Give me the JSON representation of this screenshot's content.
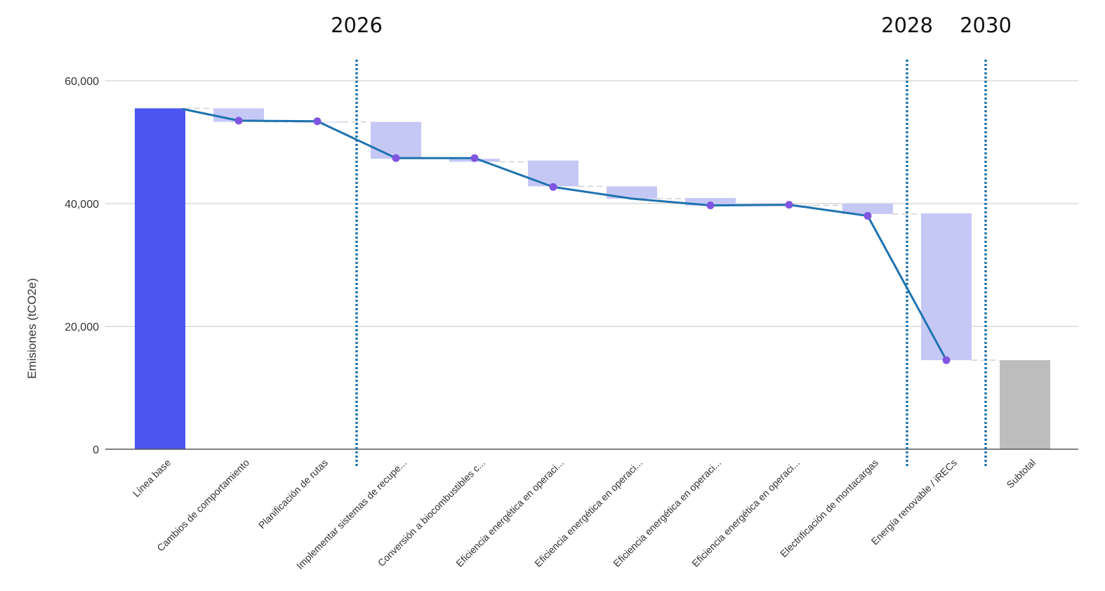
{
  "chart_data": {
    "type": "bar",
    "subtype": "waterfall",
    "ylabel": "Emisiones (tCO2e)",
    "xlabel": "",
    "ylim": [
      0,
      60000
    ],
    "yticks": [
      0,
      20000,
      40000,
      60000
    ],
    "ytick_labels": [
      "0",
      "20,000",
      "40,000",
      "60,000"
    ],
    "grid": true,
    "categories": [
      "Línea base",
      "Cambios de comportamiento",
      "Planificación de rutas",
      "Implementar sistemas de recupe...",
      "Conversión a biocombustibles c...",
      "Eficiencia energética en operaci...",
      "Eficiencia energética en operaci...",
      "Eficiencia energética en operaci...",
      "Eficiencia energética en operaci...",
      "Electrificación de montacargas",
      "Energía renovable / iRECs",
      "Subtotal"
    ],
    "bars": [
      {
        "kind": "total",
        "start": 0,
        "end": 55500
      },
      {
        "kind": "decrease",
        "start": 55500,
        "end": 53300
      },
      {
        "kind": "decrease",
        "start": 53300,
        "end": 53300
      },
      {
        "kind": "decrease",
        "start": 53300,
        "end": 47300
      },
      {
        "kind": "decrease",
        "start": 47300,
        "end": 46800
      },
      {
        "kind": "decrease",
        "start": 47000,
        "end": 42800
      },
      {
        "kind": "decrease",
        "start": 42800,
        "end": 40800
      },
      {
        "kind": "decrease",
        "start": 40900,
        "end": 39700
      },
      {
        "kind": "decrease",
        "start": 39700,
        "end": 39700
      },
      {
        "kind": "decrease",
        "start": 40000,
        "end": 38300
      },
      {
        "kind": "decrease",
        "start": 38400,
        "end": 14500
      },
      {
        "kind": "subtotal",
        "start": 0,
        "end": 14500
      }
    ],
    "line": {
      "x": [
        0,
        1,
        2,
        3,
        4,
        5,
        6,
        7,
        8,
        9,
        10
      ],
      "y": [
        55400,
        53500,
        53400,
        47400,
        47400,
        42700,
        40800,
        39700,
        39800,
        38000,
        14500
      ],
      "markers": [
        false,
        true,
        true,
        true,
        true,
        true,
        false,
        true,
        true,
        true,
        true
      ]
    },
    "year_markers": [
      {
        "label": "2026",
        "after_category": 2
      },
      {
        "label": "2028",
        "after_category": 9
      },
      {
        "label": "2030",
        "after_category": 10
      }
    ],
    "colors": {
      "total": "#4b55ef",
      "decrease": "#c5c8f5",
      "subtotal": "#bdbdbd",
      "line": "#1e73b0",
      "marker": "#8055e0",
      "year_line": "#1e73b0",
      "grid": "#d9d9d9",
      "connector": "#d0d0d0"
    }
  }
}
